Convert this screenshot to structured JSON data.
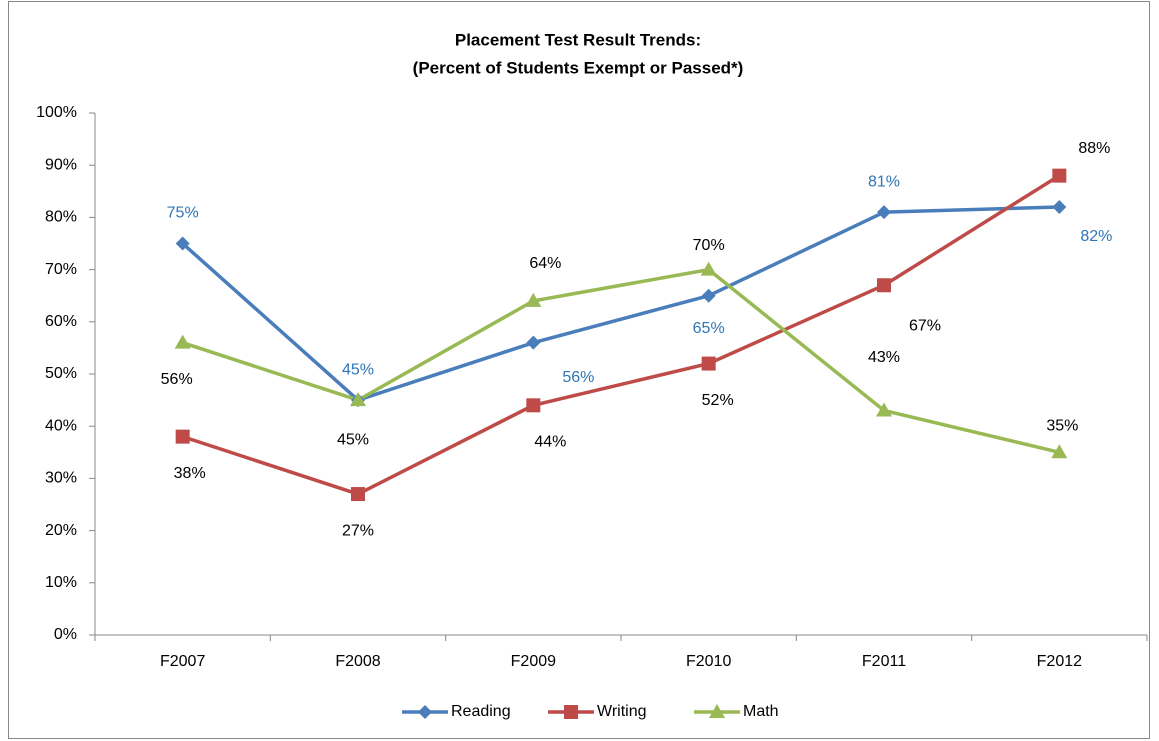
{
  "chart_data": {
    "type": "line",
    "title": "Placement Test Result Trends:",
    "subtitle": "(Percent of Students Exempt or Passed*)",
    "categories": [
      "F2007",
      "F2008",
      "F2009",
      "F2010",
      "F2011",
      "F2012"
    ],
    "series": [
      {
        "name": "Reading",
        "color": "#4a7ebb",
        "marker": "diamond",
        "label_color": "#2e75b6",
        "values": [
          75,
          45,
          56,
          65,
          81,
          82
        ],
        "value_labels": [
          "75%",
          "45%",
          "56%",
          "65%",
          "81%",
          "82%"
        ]
      },
      {
        "name": "Writing",
        "color": "#be4b48",
        "marker": "square",
        "label_color": "#000000",
        "values": [
          38,
          27,
          44,
          52,
          67,
          88
        ],
        "value_labels": [
          "38%",
          "27%",
          "44%",
          "52%",
          "67%",
          "88%"
        ]
      },
      {
        "name": "Math",
        "color": "#98b954",
        "marker": "triangle",
        "label_color": "#000000",
        "values": [
          56,
          45,
          64,
          70,
          43,
          35
        ],
        "value_labels": [
          "56%",
          "45%",
          "64%",
          "70%",
          "43%",
          "35%"
        ]
      }
    ],
    "ylim": [
      0,
      100
    ],
    "yticks": [
      {
        "value": 0,
        "label": "0%"
      },
      {
        "value": 10,
        "label": "10%"
      },
      {
        "value": 20,
        "label": "20%"
      },
      {
        "value": 30,
        "label": "30%"
      },
      {
        "value": 40,
        "label": "40%"
      },
      {
        "value": 50,
        "label": "50%"
      },
      {
        "value": 60,
        "label": "60%"
      },
      {
        "value": 70,
        "label": "70%"
      },
      {
        "value": 80,
        "label": "80%"
      },
      {
        "value": 90,
        "label": "90%"
      },
      {
        "value": 100,
        "label": "100%"
      }
    ],
    "grid": false,
    "legend": "bottom"
  }
}
